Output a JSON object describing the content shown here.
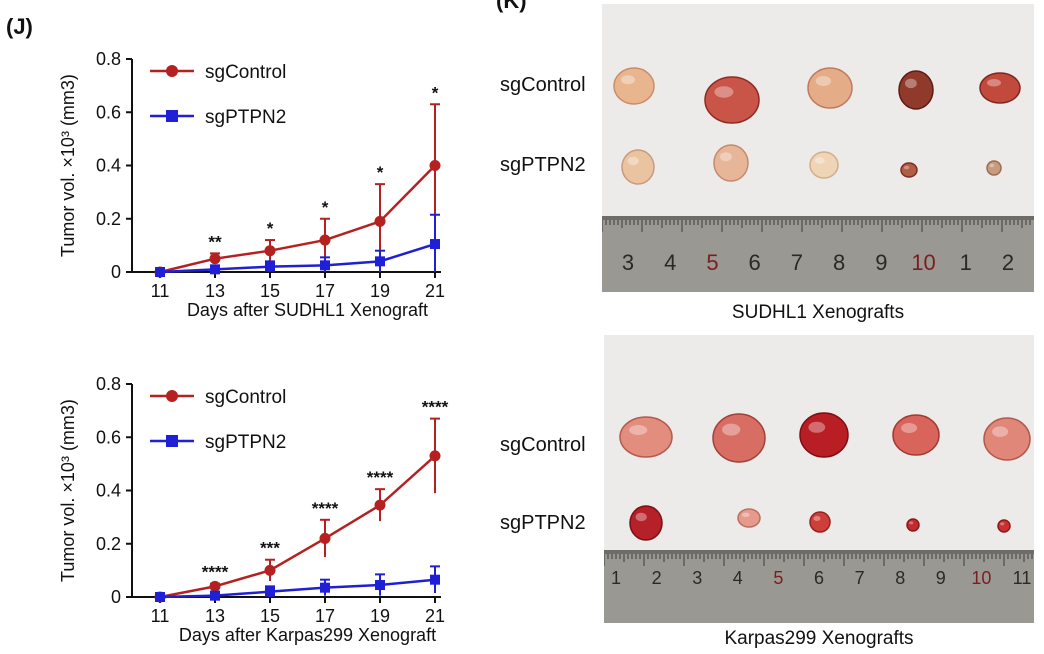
{
  "panels": {
    "J": {
      "label": "(J)"
    },
    "K": {
      "label": "(K)"
    }
  },
  "colors": {
    "control": "#b52121",
    "ptpn2": "#1f1fd6"
  },
  "chart_data": [
    {
      "type": "line",
      "title": "",
      "xlabel": "Days after SUDHL1 Xenograft",
      "ylabel": "Tumor vol. ×10³ (mm3)",
      "ylim": [
        0,
        0.8
      ],
      "yticks": [
        "0",
        "0.2",
        "0.4",
        "0.6",
        "0.8"
      ],
      "x": [
        "11",
        "13",
        "15",
        "17",
        "19",
        "21"
      ],
      "series": [
        {
          "name": "sgControl",
          "marker": "circle",
          "values": [
            0,
            0.05,
            0.08,
            0.12,
            0.19,
            0.4
          ],
          "err": [
            0,
            0.02,
            0.04,
            0.08,
            0.14,
            0.23
          ]
        },
        {
          "name": "sgPTPN2",
          "marker": "square",
          "values": [
            0,
            0.01,
            0.02,
            0.025,
            0.04,
            0.105
          ],
          "err": [
            0,
            0.01,
            0.02,
            0.03,
            0.04,
            0.11
          ]
        }
      ],
      "annotations": [
        "",
        "**",
        "*",
        "*",
        "*",
        "*"
      ],
      "legend": "top-left",
      "grid": false
    },
    {
      "type": "line",
      "title": "",
      "xlabel": "Days after Karpas299 Xenograft",
      "ylabel": "Tumor vol. ×10³ (mm3)",
      "ylim": [
        0,
        0.8
      ],
      "yticks": [
        "0",
        "0.2",
        "0.4",
        "0.6",
        "0.8"
      ],
      "x": [
        "11",
        "13",
        "15",
        "17",
        "19",
        "21"
      ],
      "series": [
        {
          "name": "sgControl",
          "marker": "circle",
          "values": [
            0,
            0.04,
            0.1,
            0.22,
            0.345,
            0.53
          ],
          "err": [
            0,
            0.01,
            0.04,
            0.07,
            0.06,
            0.14
          ]
        },
        {
          "name": "sgPTPN2",
          "marker": "square",
          "values": [
            0,
            0.005,
            0.02,
            0.035,
            0.045,
            0.065
          ],
          "err": [
            0,
            0.01,
            0.02,
            0.03,
            0.04,
            0.05
          ]
        }
      ],
      "annotations": [
        "",
        "****",
        "***",
        "****",
        "****",
        "****"
      ],
      "legend": "top-left",
      "grid": false
    }
  ],
  "photos": [
    {
      "row_labels": [
        "sgControl",
        "sgPTPN2"
      ],
      "ruler_numbers": [
        "3",
        "4",
        "5",
        "6",
        "7",
        "8",
        "9",
        "10",
        "1",
        "2"
      ],
      "caption": "SUDHL1 Xenografts"
    },
    {
      "row_labels": [
        "sgControl",
        "sgPTPN2"
      ],
      "ruler_numbers": [
        "1",
        "2",
        "3",
        "4",
        "5",
        "6",
        "7",
        "8",
        "9",
        "10",
        "11"
      ],
      "caption": "Karpas299 Xenografts"
    }
  ]
}
